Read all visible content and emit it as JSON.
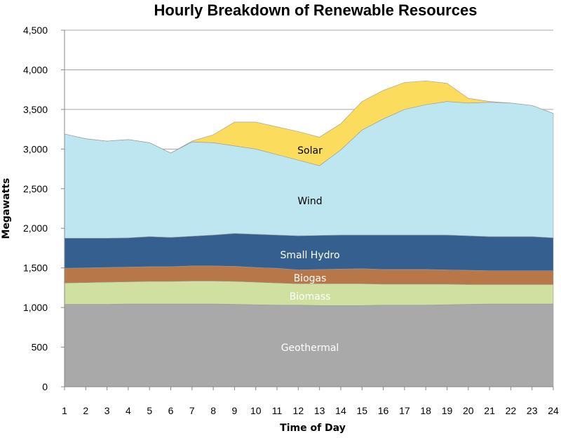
{
  "chart_data": {
    "type": "area",
    "stacked": true,
    "title": "Hourly Breakdown of Renewable Resources",
    "xlabel": "Time of Day",
    "ylabel": "Megawatts",
    "ylim": [
      0,
      4500
    ],
    "yticks": [
      0,
      500,
      1000,
      1500,
      2000,
      2500,
      3000,
      3500,
      4000,
      4500
    ],
    "ytick_labels": [
      "0",
      "500",
      "1,000",
      "1,500",
      "2,000",
      "2,500",
      "3,000",
      "3,500",
      "4,000",
      "4,500"
    ],
    "x": [
      1,
      2,
      3,
      4,
      5,
      6,
      7,
      8,
      9,
      10,
      11,
      12,
      13,
      14,
      15,
      16,
      17,
      18,
      19,
      20,
      21,
      22,
      23,
      24
    ],
    "grid": true,
    "legend": "inline labels",
    "series": [
      {
        "name": "Geothermal",
        "color": "#a9a9a9",
        "label_color": "#ffffff",
        "values": [
          1040,
          1040,
          1040,
          1045,
          1045,
          1045,
          1045,
          1045,
          1040,
          1035,
          1030,
          1030,
          1025,
          1025,
          1025,
          1030,
          1030,
          1030,
          1035,
          1040,
          1045,
          1045,
          1045,
          1045
        ]
      },
      {
        "name": "Biomass",
        "color": "#cfe0a0",
        "label_color": "#ffffff",
        "values": [
          270,
          275,
          280,
          280,
          285,
          285,
          290,
          290,
          290,
          285,
          280,
          270,
          275,
          275,
          275,
          265,
          265,
          265,
          260,
          250,
          245,
          245,
          245,
          245
        ]
      },
      {
        "name": "Biogas",
        "color": "#b87748",
        "label_color": "#ffffff",
        "values": [
          185,
          185,
          185,
          185,
          185,
          185,
          190,
          190,
          190,
          185,
          185,
          175,
          180,
          185,
          190,
          185,
          185,
          185,
          180,
          180,
          175,
          175,
          175,
          175
        ]
      },
      {
        "name": "Small Hydro",
        "color": "#355f8f",
        "label_color": "#ffffff",
        "values": [
          380,
          375,
          370,
          370,
          380,
          370,
          375,
          390,
          415,
          420,
          420,
          430,
          430,
          430,
          425,
          435,
          435,
          435,
          440,
          435,
          430,
          430,
          430,
          415
        ]
      },
      {
        "name": "Wind",
        "color": "#bee6f0",
        "label_color": "#000000",
        "values": [
          1315,
          1255,
          1225,
          1240,
          1185,
          1065,
          1190,
          1165,
          1105,
          1075,
          1015,
          955,
          880,
          1075,
          1325,
          1465,
          1585,
          1645,
          1685,
          1675,
          1695,
          1685,
          1655,
          1570
        ]
      },
      {
        "name": "Solar",
        "color": "#fbdc5c",
        "label_color": "#000000",
        "values": [
          0,
          0,
          0,
          0,
          0,
          0,
          10,
          100,
          300,
          340,
          350,
          360,
          360,
          330,
          360,
          360,
          340,
          300,
          230,
          60,
          10,
          0,
          0,
          0
        ]
      }
    ]
  }
}
